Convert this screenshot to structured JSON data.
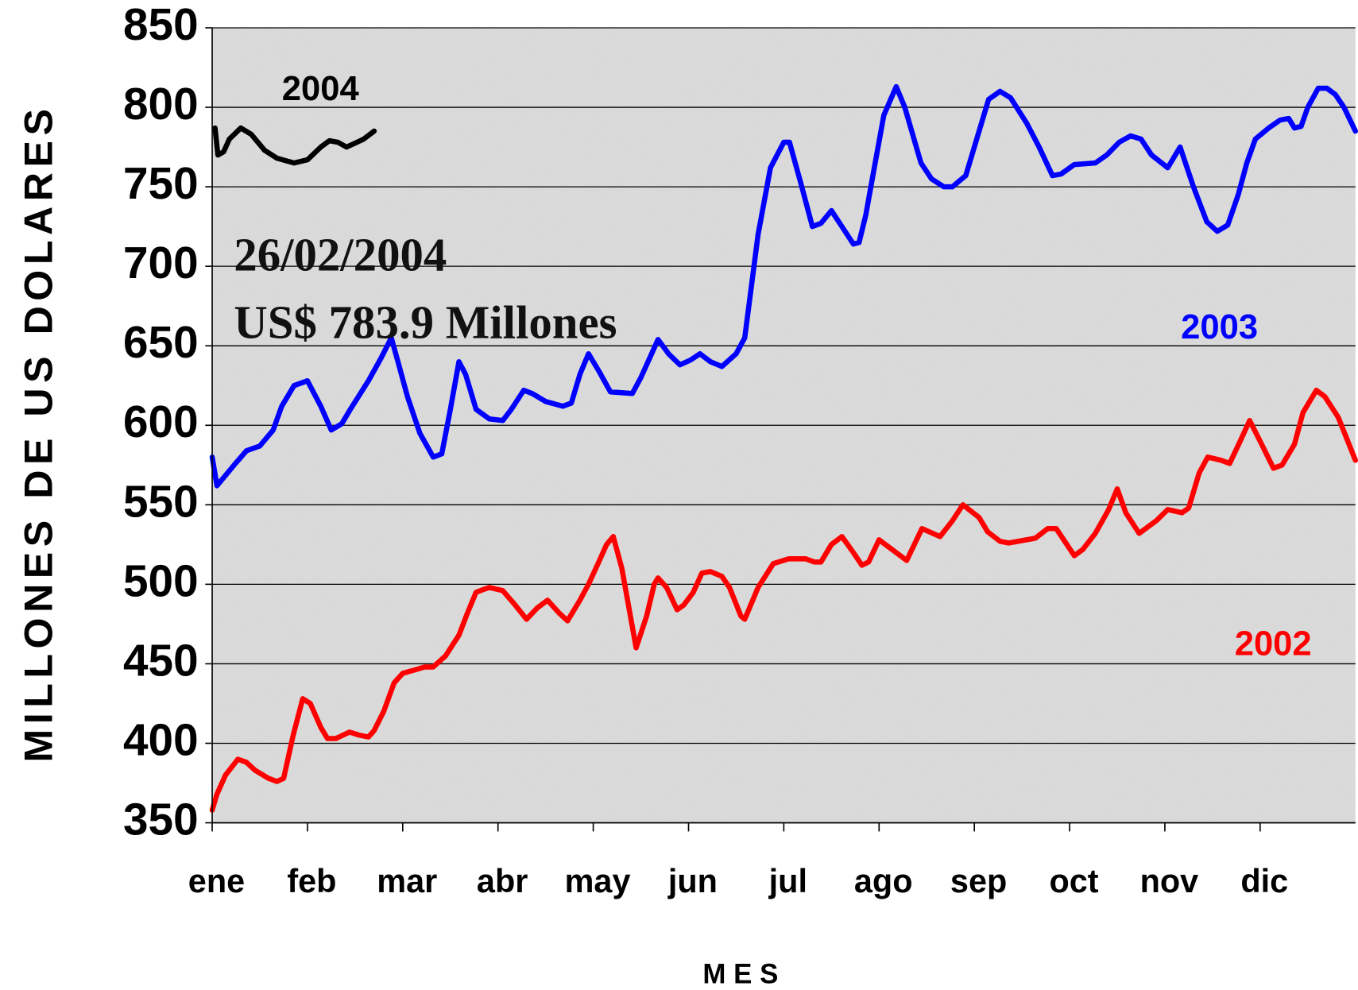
{
  "chart_data": {
    "type": "line",
    "y_label": "MILLONES DE US DOLARES",
    "x_label": "M E S",
    "annotations": [
      "26/02/2004",
      "US$ 783.9 Millones"
    ],
    "xlim": [
      0,
      12
    ],
    "xticks": [
      {
        "value": 0,
        "label": "ene"
      },
      {
        "value": 1,
        "label": "feb"
      },
      {
        "value": 2,
        "label": "mar"
      },
      {
        "value": 3,
        "label": "abr"
      },
      {
        "value": 4,
        "label": "may"
      },
      {
        "value": 5,
        "label": "jun"
      },
      {
        "value": 6,
        "label": "jul"
      },
      {
        "value": 7,
        "label": "ago"
      },
      {
        "value": 8,
        "label": "sep"
      },
      {
        "value": 9,
        "label": "oct"
      },
      {
        "value": 10,
        "label": "nov"
      },
      {
        "value": 11,
        "label": "dic"
      }
    ],
    "ylim": [
      350,
      850
    ],
    "yticks": [
      350,
      400,
      450,
      500,
      550,
      600,
      650,
      700,
      750,
      800,
      850
    ],
    "grid": true,
    "series": [
      {
        "name": "2004",
        "color": "#000000",
        "x": [
          0.03,
          0.06,
          0.12,
          0.18,
          0.3,
          0.41,
          0.55,
          0.68,
          0.86,
          1.0,
          1.14,
          1.23,
          1.32,
          1.41,
          1.52,
          1.59,
          1.7
        ],
        "values": [
          787,
          770,
          772,
          780,
          787,
          783,
          773,
          768,
          765,
          767,
          775,
          779,
          778,
          775,
          778,
          780,
          785
        ]
      },
      {
        "name": "2003",
        "color": "#0000ff",
        "x": [
          0,
          0.05,
          0.23,
          0.36,
          0.5,
          0.64,
          0.73,
          0.86,
          1.0,
          1.14,
          1.25,
          1.36,
          1.45,
          1.64,
          1.77,
          1.88,
          1.95,
          2.05,
          2.18,
          2.32,
          2.41,
          2.5,
          2.59,
          2.66,
          2.77,
          2.91,
          3.05,
          3.14,
          3.27,
          3.36,
          3.5,
          3.68,
          3.77,
          3.86,
          3.95,
          4.06,
          4.18,
          4.41,
          4.5,
          4.59,
          4.68,
          4.79,
          4.91,
          5.02,
          5.12,
          5.23,
          5.35,
          5.5,
          5.59,
          5.73,
          5.86,
          6.0,
          6.06,
          6.18,
          6.3,
          6.39,
          6.5,
          6.61,
          6.73,
          6.79,
          6.86,
          6.95,
          7.05,
          7.18,
          7.27,
          7.44,
          7.55,
          7.68,
          7.77,
          7.91,
          8.05,
          8.15,
          8.27,
          8.38,
          8.55,
          8.68,
          8.82,
          8.91,
          9.05,
          9.27,
          9.39,
          9.52,
          9.64,
          9.75,
          9.86,
          10.03,
          10.16,
          10.3,
          10.44,
          10.55,
          10.66,
          10.77,
          10.86,
          10.95,
          11.09,
          11.21,
          11.3,
          11.36,
          11.43,
          11.5,
          11.61,
          11.7,
          11.79,
          11.88,
          12.0
        ],
        "values": [
          580,
          562,
          575,
          584,
          587,
          597,
          612,
          625,
          628,
          612,
          597,
          601,
          610,
          628,
          642,
          655,
          640,
          618,
          595,
          580,
          582,
          610,
          640,
          632,
          610,
          604,
          603,
          610,
          622,
          620,
          615,
          612,
          614,
          632,
          645,
          634,
          621,
          620,
          630,
          642,
          654,
          645,
          638,
          641,
          645,
          640,
          637,
          645,
          655,
          720,
          762,
          778,
          778,
          752,
          725,
          727,
          735,
          725,
          714,
          715,
          732,
          762,
          795,
          813,
          800,
          765,
          755,
          750,
          750,
          757,
          785,
          805,
          810,
          806,
          790,
          775,
          757,
          758,
          764,
          765,
          770,
          778,
          782,
          780,
          770,
          762,
          775,
          750,
          728,
          722,
          726,
          745,
          765,
          780,
          787,
          792,
          793,
          787,
          788,
          800,
          812,
          812,
          808,
          800,
          785
        ]
      },
      {
        "name": "2002",
        "color": "#ff0000",
        "x": [
          0,
          0.05,
          0.14,
          0.27,
          0.36,
          0.45,
          0.59,
          0.68,
          0.75,
          0.85,
          0.95,
          1.03,
          1.14,
          1.21,
          1.3,
          1.44,
          1.55,
          1.64,
          1.7,
          1.8,
          1.91,
          2.0,
          2.12,
          2.23,
          2.32,
          2.45,
          2.59,
          2.68,
          2.77,
          2.86,
          2.91,
          3.05,
          3.18,
          3.3,
          3.41,
          3.52,
          3.64,
          3.73,
          3.86,
          3.95,
          4.05,
          4.14,
          4.21,
          4.3,
          4.36,
          4.45,
          4.56,
          4.64,
          4.68,
          4.77,
          4.88,
          4.95,
          5.05,
          5.14,
          5.23,
          5.35,
          5.43,
          5.55,
          5.59,
          5.73,
          5.89,
          6.05,
          6.23,
          6.32,
          6.39,
          6.5,
          6.61,
          6.73,
          6.82,
          6.89,
          7.0,
          7.29,
          7.45,
          7.64,
          7.77,
          7.88,
          8.05,
          8.14,
          8.27,
          8.36,
          8.64,
          8.77,
          8.86,
          9.05,
          9.14,
          9.27,
          9.41,
          9.5,
          9.59,
          9.73,
          9.91,
          10.03,
          10.18,
          10.25,
          10.36,
          10.45,
          10.59,
          10.68,
          10.79,
          10.89,
          11.0,
          11.14,
          11.23,
          11.36,
          11.45,
          11.59,
          11.68,
          11.82,
          12.0
        ],
        "values": [
          358,
          368,
          380,
          390,
          388,
          383,
          378,
          376,
          378,
          405,
          428,
          425,
          410,
          403,
          403,
          407,
          405,
          404,
          408,
          420,
          438,
          444,
          446,
          448,
          448,
          455,
          468,
          482,
          495,
          497,
          498,
          496,
          487,
          478,
          485,
          490,
          482,
          477,
          490,
          500,
          513,
          525,
          530,
          510,
          490,
          460,
          480,
          500,
          504,
          498,
          484,
          487,
          495,
          507,
          508,
          505,
          498,
          480,
          478,
          498,
          513,
          516,
          516,
          514,
          514,
          525,
          530,
          520,
          512,
          514,
          528,
          515,
          535,
          530,
          540,
          550,
          542,
          533,
          527,
          526,
          529,
          535,
          535,
          518,
          522,
          532,
          547,
          560,
          545,
          532,
          540,
          547,
          545,
          548,
          570,
          580,
          578,
          576,
          590,
          603,
          590,
          573,
          575,
          588,
          608,
          622,
          618,
          605,
          578
        ]
      }
    ]
  }
}
